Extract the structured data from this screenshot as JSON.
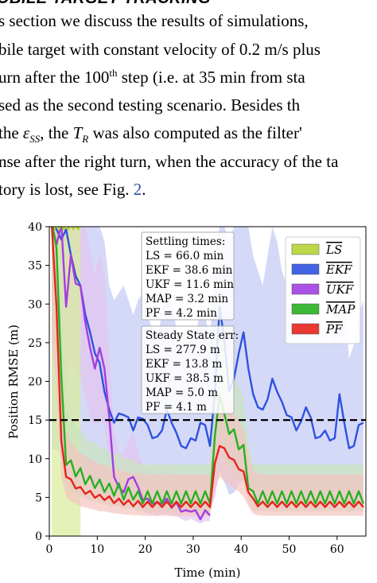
{
  "text": {
    "heading": "OBILE TARGET TRACKING",
    "line1": "s section we discuss the results of simulations,",
    "line2": "bile target with constant velocity of 0.2 m/s plus",
    "line3_a": "urn after the 100",
    "line3_sup": "th",
    "line3_b": " step (i.e. at 35 min from sta",
    "line4": "sed as the second testing scenario. Besides th",
    "line5_a": "the ",
    "line5_eps": "ε",
    "line5_sub": "SS",
    "line5_b": ", the ",
    "line5_tr": "T",
    "line5_trsub": "R",
    "line5_c": " was also computed as the filter'",
    "line6": "nse after the right turn, when the accuracy of the ta",
    "line7_a": "tory is lost, see Fig. ",
    "line7_link": "2",
    "line7_b": "."
  },
  "chart_data": {
    "type": "line",
    "xlabel": "Time (min)",
    "ylabel": "Position RMSE (m)",
    "xlim": [
      0,
      66
    ],
    "ylim": [
      0,
      40
    ],
    "xticks": [
      0,
      10,
      20,
      30,
      40,
      50,
      60
    ],
    "yticks": [
      0,
      5,
      10,
      15,
      20,
      25,
      30,
      35,
      40
    ],
    "grid": false,
    "threshold": 15,
    "legend_position": "top-right",
    "settling_box": {
      "title": "Settling times:",
      "lines": [
        "LS = 66.0 min",
        "EKF = 38.6 min",
        "UKF = 11.6 min",
        "MAP = 3.2 min",
        "PF = 4.2 min"
      ]
    },
    "steady_box": {
      "title": "Steady State err:",
      "lines": [
        "LS = 277.9 m",
        "EKF = 13.8 m",
        "UKF = 38.5 m",
        "MAP = 5.0 m",
        "PF = 4.1 m"
      ]
    },
    "series": [
      {
        "name": "LS",
        "color": "#b5d334",
        "band_color": "#d8ec9a",
        "x": [
          0.5,
          1,
          1.5,
          2,
          2.5,
          3,
          3.5,
          4,
          4.5,
          5,
          5.5,
          6,
          6.5
        ],
        "y": [
          40,
          40,
          40,
          40,
          40,
          40,
          40,
          40,
          40,
          40,
          40,
          40,
          40
        ]
      },
      {
        "name": "EKF",
        "color": "#2e52e0",
        "band_color": "#c7ccf5",
        "x": [
          0.5,
          1.5,
          2.5,
          3.5,
          4.5,
          5.5,
          6.5,
          7.5,
          8.5,
          9.5,
          10.5,
          11.5,
          12.5,
          13.5,
          14.5,
          15.5,
          16.5,
          17.5,
          18.5,
          19.5,
          20.5,
          21.5,
          22.5,
          23.5,
          24.5,
          25.5,
          26.5,
          27.5,
          28.5,
          29.5,
          30.5,
          31.5,
          32.5,
          33.5,
          34.5,
          35.5,
          36.5,
          37.5,
          38.5,
          39.5,
          40.5,
          41.5,
          42.5,
          43.5,
          44.5,
          45.5,
          46.5,
          47.5,
          48.5,
          49.5,
          50.5,
          51.5,
          52.5,
          53.5,
          54.5,
          55.5,
          56.5,
          57.5,
          58.5,
          59.5,
          60.5,
          61.5,
          62.5,
          63.5,
          64.5,
          65.5
        ],
        "y": [
          40,
          40,
          38,
          40,
          36,
          34,
          32,
          29,
          26,
          24,
          22,
          19,
          16,
          15,
          15.5,
          16,
          15,
          14,
          15,
          15.5,
          14,
          13,
          12.5,
          14,
          16,
          15,
          13,
          12,
          11,
          13,
          12,
          15,
          14,
          12,
          18,
          30,
          25,
          19,
          20,
          24,
          26,
          22,
          18,
          17,
          16,
          18,
          20,
          19,
          17,
          16,
          15,
          14,
          14.5,
          17,
          15,
          13,
          12.5,
          14,
          12,
          13,
          18,
          15,
          11,
          12,
          14,
          15
        ]
      },
      {
        "name": "UKF",
        "color": "#a23ee0",
        "band_color": "#e3c4ee",
        "x": [
          0.5,
          1.5,
          2.5,
          3.5,
          4.5,
          5.5,
          6.5,
          7.5,
          8.5,
          9.5,
          10.5,
          11.5,
          12.5,
          13.5,
          14.5,
          15.5,
          16.5,
          17.5,
          18.5,
          19.5,
          20.5,
          21.5,
          22.5,
          23.5,
          24.5,
          25.5,
          26.5,
          27.5,
          28.5,
          29.5,
          30.5,
          31.5,
          32.5,
          33.5
        ],
        "y": [
          40,
          38,
          40,
          30,
          36,
          33,
          32,
          28,
          24,
          22,
          24,
          22,
          15,
          8,
          6,
          6,
          7,
          8,
          6,
          5,
          4.5,
          4.5,
          4,
          4.5,
          4.5,
          4,
          4,
          3.5,
          3,
          3.5,
          3,
          2.5,
          3,
          3
        ]
      },
      {
        "name": "MAP",
        "color": "#27b020",
        "band_color": "#c9e4bd",
        "x": [
          0.5,
          1.5,
          2.5,
          3.5,
          4.5,
          5.5,
          6.5,
          7.5,
          8.5,
          9.5,
          10.5,
          11.5,
          12.5,
          13.5,
          14.5,
          15.5,
          16.5,
          17.5,
          18.5,
          19.5,
          20.5,
          21.5,
          22.5,
          23.5,
          24.5,
          25.5,
          26.5,
          27.5,
          28.5,
          29.5,
          30.5,
          31.5,
          32.5,
          33.5,
          34.5,
          35.5,
          36.5,
          37.5,
          38.5,
          39.5,
          40.5,
          41.5,
          42.5,
          43.5,
          44.5,
          45.5,
          46.5,
          47.5,
          48.5,
          49.5,
          50.5,
          51.5,
          52.5,
          53.5,
          54.5,
          55.5,
          56.5,
          57.5,
          58.5,
          59.5,
          60.5,
          61.5,
          62.5,
          63.5,
          64.5,
          65.5
        ],
        "y": [
          40,
          38,
          20,
          10,
          9,
          8.5,
          8,
          7.5,
          7,
          7,
          6.5,
          6.5,
          6,
          6,
          6,
          5.5,
          5.5,
          5.5,
          5,
          5,
          5,
          5,
          5,
          5,
          5,
          5,
          5,
          5,
          5,
          5,
          5,
          5,
          5,
          5,
          12,
          19,
          15,
          14,
          13,
          12,
          11,
          7,
          5,
          5,
          5,
          5,
          5,
          5,
          5,
          5,
          5,
          5,
          5,
          5,
          5,
          5,
          5,
          5,
          5,
          5,
          5,
          5,
          5,
          5,
          5,
          5
        ]
      },
      {
        "name": "PF",
        "color": "#e5231c",
        "band_color": "#f4c4c0",
        "x": [
          0.5,
          1.5,
          2.5,
          3.5,
          4.5,
          5.5,
          6.5,
          7.5,
          8.5,
          9.5,
          10.5,
          11.5,
          12.5,
          13.5,
          14.5,
          15.5,
          16.5,
          17.5,
          18.5,
          19.5,
          20.5,
          21.5,
          22.5,
          23.5,
          24.5,
          25.5,
          26.5,
          27.5,
          28.5,
          29.5,
          30.5,
          31.5,
          32.5,
          33.5,
          34.5,
          35.5,
          36.5,
          37.5,
          38.5,
          39.5,
          40.5,
          41.5,
          42.5,
          43.5,
          44.5,
          45.5,
          46.5,
          47.5,
          48.5,
          49.5,
          50.5,
          51.5,
          52.5,
          53.5,
          54.5,
          55.5,
          56.5,
          57.5,
          58.5,
          59.5,
          60.5,
          61.5,
          62.5,
          63.5,
          64.5,
          65.5
        ],
        "y": [
          40,
          30,
          12,
          8,
          7,
          6.5,
          6,
          5.8,
          5.5,
          5.3,
          5,
          5,
          4.8,
          4.6,
          4.5,
          4.4,
          4.3,
          4.2,
          4.2,
          4.1,
          4.1,
          4.1,
          4.1,
          4.1,
          4.1,
          4.1,
          4.1,
          4.1,
          4.1,
          4.1,
          4.1,
          4.1,
          4.1,
          4.1,
          9,
          12,
          11,
          10.5,
          9.5,
          9,
          8,
          6,
          4.5,
          4.2,
          4.1,
          4.1,
          4.1,
          4.1,
          4.1,
          4.1,
          4.1,
          4.1,
          4.1,
          4.1,
          4.1,
          4.1,
          4.1,
          4.1,
          4.1,
          4.1,
          4.1,
          4.1,
          4.1,
          4.1,
          4.1,
          4.1
        ]
      }
    ]
  }
}
